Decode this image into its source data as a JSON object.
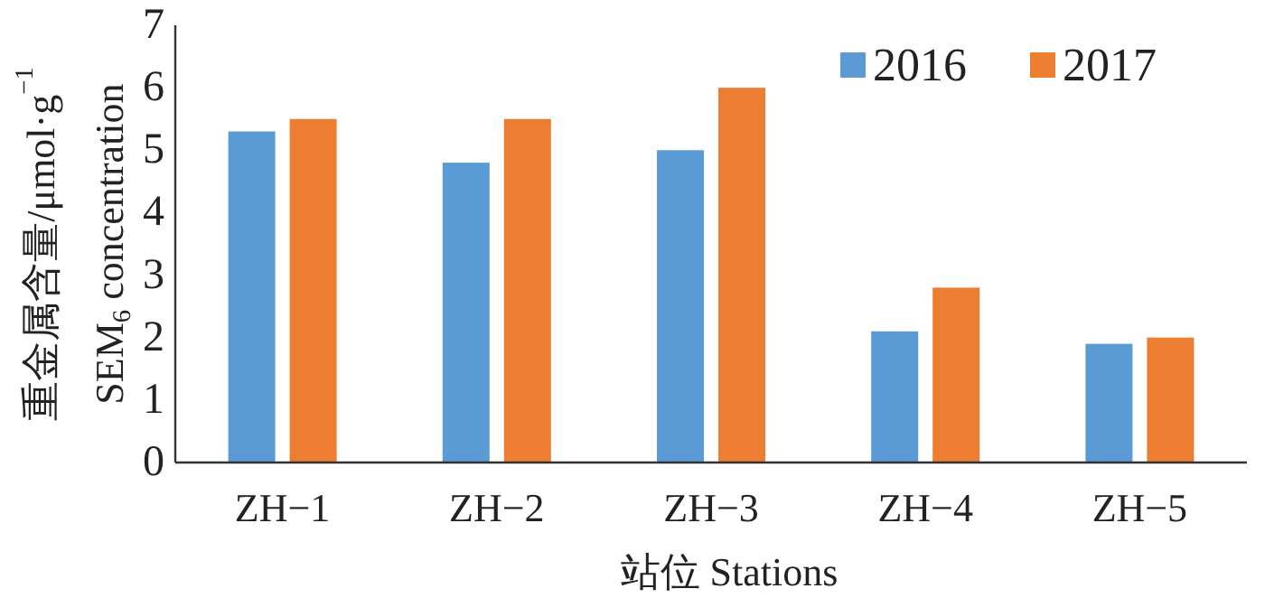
{
  "chart_data": {
    "type": "bar",
    "categories": [
      "ZH−1",
      "ZH−2",
      "ZH−3",
      "ZH−4",
      "ZH−5"
    ],
    "series": [
      {
        "name": "2016",
        "color": "#5b9bd5",
        "values": [
          5.3,
          4.8,
          5.0,
          2.1,
          1.9
        ]
      },
      {
        "name": "2017",
        "color": "#ed7d31",
        "values": [
          5.5,
          5.5,
          6.0,
          2.8,
          2.0
        ]
      }
    ],
    "xlabel": "站位 Stations",
    "ylabel": "重金属含量/μmol·g$^{−1}$\nSEM$_{6}$ concentration",
    "ylim": [
      0,
      7
    ],
    "yticks": [
      0,
      1,
      2,
      3,
      4,
      5,
      6,
      7
    ],
    "grid": false,
    "legend": "top right"
  }
}
